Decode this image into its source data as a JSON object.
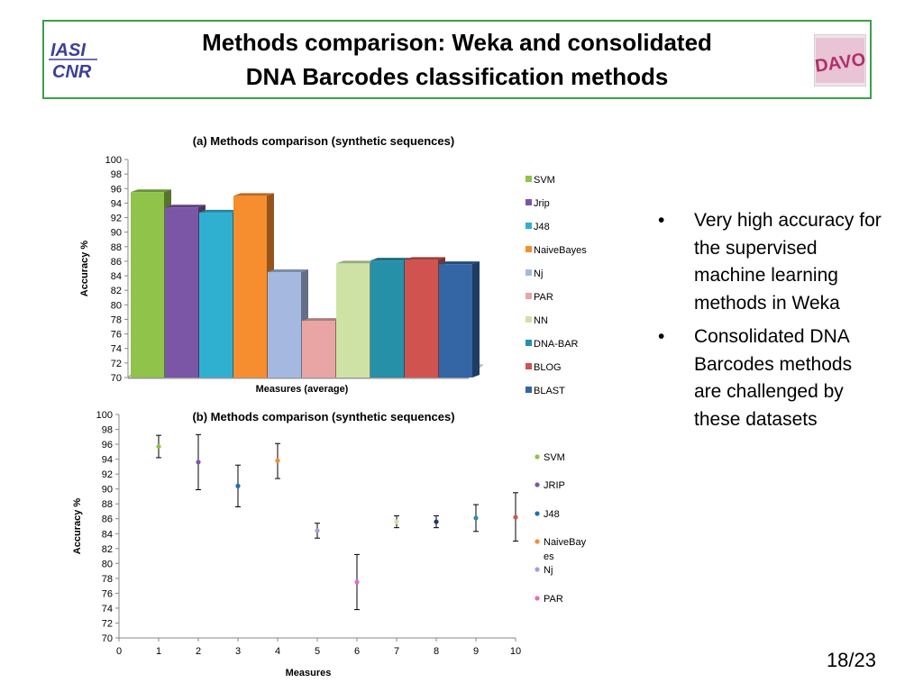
{
  "slide": {
    "title_line1": "Methods comparison: Weka and consolidated",
    "title_line2": "DNA Barcodes classification methods",
    "page_number": "18/23",
    "bullets": [
      "Very high accuracy for the supervised machine learning methods in Weka",
      "Consolidated DNA Barcodes methods are challenged by these datasets"
    ],
    "bullet_symbol": "•",
    "logo_left_text": "IASI CNR",
    "logo_right_text": "DAVO"
  },
  "chart_data": [
    {
      "type": "bar",
      "title": "(a) Methods comparison (synthetic sequences)",
      "xlabel": "Measures (average)",
      "ylabel": "Accuracy %",
      "ylim": [
        70,
        100
      ],
      "yticks": [
        70,
        72,
        74,
        76,
        78,
        80,
        82,
        84,
        86,
        88,
        90,
        92,
        94,
        96,
        98,
        100
      ],
      "legend_position": "right",
      "series": [
        {
          "name": "SVM",
          "value": 95.5,
          "color": "#8fc34a"
        },
        {
          "name": "Jrip",
          "value": 93.4,
          "color": "#7b56a6"
        },
        {
          "name": "J48",
          "value": 92.7,
          "color": "#2fb0d0"
        },
        {
          "name": "NaiveBayes",
          "value": 95.0,
          "color": "#f68d2e"
        },
        {
          "name": "Nj",
          "value": 84.5,
          "color": "#a5b9e0"
        },
        {
          "name": "PAR",
          "value": 77.8,
          "color": "#e8a5a3"
        },
        {
          "name": "NN",
          "value": 85.7,
          "color": "#cfe2a6"
        },
        {
          "name": "DNA-BAR",
          "value": 86.1,
          "color": "#2690a8"
        },
        {
          "name": "BLOG",
          "value": 86.2,
          "color": "#d0534f"
        },
        {
          "name": "BLAST",
          "value": 85.6,
          "color": "#3465a4"
        }
      ]
    },
    {
      "type": "scatter",
      "title": "(b) Methods comparison (synthetic sequences)",
      "xlabel": "Measures",
      "ylabel": "Accuracy %",
      "xlim": [
        0,
        10
      ],
      "ylim": [
        70,
        100
      ],
      "xticks": [
        0,
        1,
        2,
        3,
        4,
        5,
        6,
        7,
        8,
        9,
        10
      ],
      "yticks": [
        70,
        72,
        74,
        76,
        78,
        80,
        82,
        84,
        86,
        88,
        90,
        92,
        94,
        96,
        98,
        100
      ],
      "legend_position": "right",
      "legend": [
        {
          "name": "SVM",
          "color": "#8fc34a"
        },
        {
          "name": "JRIP",
          "color": "#7b56a6"
        },
        {
          "name": "J48",
          "color": "#1f6fb4"
        },
        {
          "name": "NaiveBayes",
          "color": "#f68d2e"
        },
        {
          "name": "Nj",
          "color": "#a5a0d8"
        },
        {
          "name": "PAR",
          "color": "#e06fc0"
        }
      ],
      "points": [
        {
          "x": 1,
          "y": 95.7,
          "low": 94.2,
          "high": 97.2,
          "color": "#8fc34a"
        },
        {
          "x": 2,
          "y": 93.6,
          "low": 89.9,
          "high": 97.3,
          "color": "#7b56a6"
        },
        {
          "x": 3,
          "y": 90.4,
          "low": 87.6,
          "high": 93.2,
          "color": "#1f6fb4"
        },
        {
          "x": 4,
          "y": 93.8,
          "low": 91.4,
          "high": 96.1,
          "color": "#f68d2e"
        },
        {
          "x": 5,
          "y": 84.4,
          "low": 83.4,
          "high": 85.4,
          "color": "#a5a0d8"
        },
        {
          "x": 6,
          "y": 77.5,
          "low": 73.8,
          "high": 81.2,
          "color": "#e06fc0"
        },
        {
          "x": 7,
          "y": 85.6,
          "low": 84.8,
          "high": 86.4,
          "color": "#cfe2a6"
        },
        {
          "x": 8,
          "y": 85.6,
          "low": 84.8,
          "high": 86.4,
          "color": "#1f3a6a"
        },
        {
          "x": 9,
          "y": 86.1,
          "low": 84.3,
          "high": 87.9,
          "color": "#2690a8"
        },
        {
          "x": 10,
          "y": 86.2,
          "low": 83.0,
          "high": 89.5,
          "color": "#d0534f"
        }
      ]
    }
  ]
}
